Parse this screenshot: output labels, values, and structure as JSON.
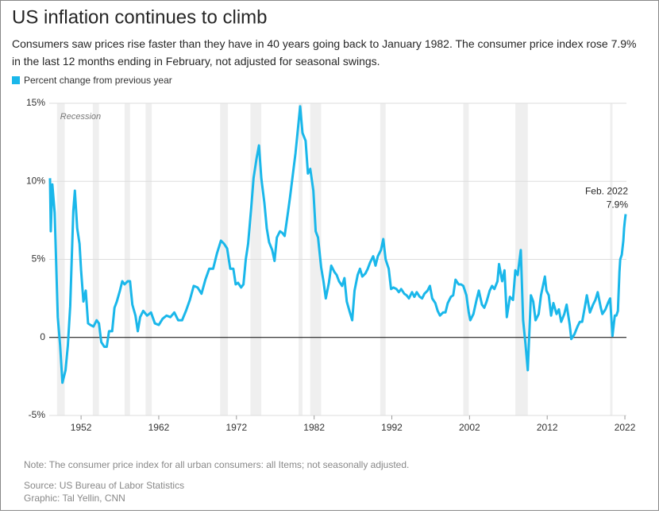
{
  "chart_data": {
    "type": "line",
    "title": "US inflation continues to climb",
    "subtitle": "Consumers saw prices rise faster than they have in 40 years going back to January 1982. The consumer price index rose 7.9% in the last 12 months ending in February, not adjusted for seasonal swings.",
    "note": "Note: The consumer price index for all urban consumers: all Items; not seasonally adjusted.",
    "source": "Source: US Bureau of Labor Statistics",
    "credit": "Graphic: Tal Yellin, CNN",
    "recession_label": "Recession",
    "recessions": [
      [
        1948.9,
        1949.9
      ],
      [
        1953.5,
        1954.3
      ],
      [
        1957.6,
        1958.3
      ],
      [
        1960.3,
        1961.1
      ],
      [
        1969.9,
        1970.9
      ],
      [
        1973.8,
        1975.2
      ],
      [
        1980.0,
        1980.5
      ],
      [
        1981.5,
        1982.9
      ],
      [
        1990.5,
        1991.2
      ],
      [
        2001.2,
        2001.9
      ],
      [
        2007.9,
        2009.5
      ],
      [
        2020.1,
        2020.4
      ]
    ],
    "annotation": {
      "x": 2022.1,
      "text": "Feb. 2022",
      "value": 7.9,
      "value_label": "7.9%"
    },
    "xlim": [
      1947.9,
      2022.2
    ],
    "xticks": [
      1952,
      1962,
      1972,
      1982,
      1992,
      2002,
      2012,
      2022
    ],
    "ylim": [
      -5,
      15
    ],
    "yticks": [
      {
        "value": -5,
        "label": "-5%"
      },
      0,
      {
        "value": 5,
        "label": "5%"
      },
      {
        "value": 10,
        "label": "10%"
      },
      {
        "value": 15,
        "label": "15%"
      }
    ],
    "grid": true,
    "x": [
      1948.0,
      1948.1,
      1948.3,
      1948.6,
      1949.0,
      1949.3,
      1949.6,
      1950.0,
      1950.3,
      1950.6,
      1951.0,
      1951.2,
      1951.5,
      1951.8,
      1952.0,
      1952.3,
      1952.6,
      1952.9,
      1953.2,
      1953.6,
      1954.0,
      1954.3,
      1954.6,
      1955.0,
      1955.3,
      1955.6,
      1956.0,
      1956.3,
      1956.6,
      1957.0,
      1957.3,
      1957.6,
      1958.0,
      1958.3,
      1958.6,
      1959.0,
      1959.3,
      1959.6,
      1960.0,
      1960.5,
      1961.0,
      1961.5,
      1962.0,
      1962.5,
      1963.0,
      1963.5,
      1964.0,
      1964.5,
      1965.0,
      1965.5,
      1966.0,
      1966.5,
      1967.0,
      1967.5,
      1968.0,
      1968.5,
      1969.0,
      1969.5,
      1970.0,
      1970.4,
      1970.8,
      1971.2,
      1971.6,
      1971.9,
      1972.2,
      1972.6,
      1972.9,
      1973.2,
      1973.5,
      1973.9,
      1974.2,
      1974.6,
      1974.9,
      1975.2,
      1975.6,
      1975.9,
      1976.2,
      1976.6,
      1976.9,
      1977.2,
      1977.6,
      1977.9,
      1978.2,
      1978.6,
      1978.9,
      1979.2,
      1979.6,
      1979.9,
      1980.2,
      1980.5,
      1980.9,
      1981.2,
      1981.5,
      1981.9,
      1982.2,
      1982.5,
      1982.9,
      1983.2,
      1983.5,
      1983.9,
      1984.2,
      1984.6,
      1984.9,
      1985.2,
      1985.6,
      1985.9,
      1986.2,
      1986.6,
      1986.9,
      1987.2,
      1987.6,
      1987.9,
      1988.2,
      1988.6,
      1988.9,
      1989.2,
      1989.6,
      1989.9,
      1990.2,
      1990.6,
      1990.9,
      1991.2,
      1991.6,
      1991.9,
      1992.2,
      1992.6,
      1992.9,
      1993.2,
      1993.6,
      1993.9,
      1994.2,
      1994.6,
      1994.9,
      1995.2,
      1995.6,
      1995.9,
      1996.2,
      1996.6,
      1996.9,
      1997.2,
      1997.6,
      1997.9,
      1998.2,
      1998.6,
      1998.9,
      1999.2,
      1999.6,
      1999.9,
      2000.2,
      2000.6,
      2000.9,
      2001.2,
      2001.6,
      2001.9,
      2002.1,
      2002.5,
      2002.9,
      2003.2,
      2003.6,
      2003.9,
      2004.2,
      2004.6,
      2004.9,
      2005.2,
      2005.6,
      2005.8,
      2006.2,
      2006.5,
      2006.8,
      2007.2,
      2007.6,
      2007.9,
      2008.2,
      2008.6,
      2008.9,
      2009.2,
      2009.5,
      2009.9,
      2010.2,
      2010.5,
      2010.9,
      2011.2,
      2011.7,
      2011.9,
      2012.2,
      2012.5,
      2012.8,
      2013.2,
      2013.5,
      2013.8,
      2014.2,
      2014.5,
      2014.9,
      2015.1,
      2015.5,
      2015.9,
      2016.2,
      2016.5,
      2016.9,
      2017.1,
      2017.5,
      2017.9,
      2018.2,
      2018.5,
      2018.9,
      2019.1,
      2019.5,
      2019.9,
      2020.1,
      2020.4,
      2020.7,
      2020.9,
      2021.1,
      2021.3,
      2021.4,
      2021.6,
      2021.8,
      2021.9,
      2022.0,
      2022.1
    ],
    "series": [
      {
        "name": "Percent change from previous year",
        "color": "#1ab7ea",
        "values": [
          10.2,
          6.8,
          9.8,
          8.0,
          1.3,
          -0.5,
          -2.9,
          -2.1,
          -0.5,
          2.0,
          8.1,
          9.4,
          7.0,
          6.0,
          4.3,
          2.3,
          3.0,
          0.9,
          0.8,
          0.7,
          1.1,
          0.9,
          -0.3,
          -0.6,
          -0.6,
          0.4,
          0.4,
          1.9,
          2.3,
          3.0,
          3.6,
          3.4,
          3.6,
          3.6,
          2.1,
          1.4,
          0.4,
          1.3,
          1.7,
          1.4,
          1.6,
          0.9,
          0.8,
          1.2,
          1.4,
          1.3,
          1.6,
          1.1,
          1.1,
          1.7,
          2.4,
          3.3,
          3.2,
          2.8,
          3.7,
          4.4,
          4.4,
          5.4,
          6.2,
          6.0,
          5.7,
          4.4,
          4.4,
          3.4,
          3.5,
          3.2,
          3.4,
          5.0,
          6.0,
          8.3,
          10.2,
          11.5,
          12.3,
          10.2,
          8.6,
          7.0,
          6.1,
          5.6,
          4.9,
          6.4,
          6.8,
          6.7,
          6.5,
          7.9,
          9.0,
          10.2,
          11.8,
          13.3,
          14.8,
          13.1,
          12.6,
          10.5,
          10.8,
          9.4,
          6.8,
          6.4,
          4.5,
          3.6,
          2.5,
          3.5,
          4.6,
          4.2,
          4.0,
          3.6,
          3.3,
          3.8,
          2.3,
          1.6,
          1.1,
          3.0,
          4.0,
          4.4,
          3.9,
          4.1,
          4.4,
          4.8,
          5.2,
          4.6,
          5.2,
          5.6,
          6.3,
          5.0,
          4.4,
          3.1,
          3.2,
          3.1,
          2.9,
          3.1,
          2.8,
          2.7,
          2.5,
          2.9,
          2.6,
          2.9,
          2.6,
          2.5,
          2.8,
          3.0,
          3.3,
          2.5,
          2.2,
          1.7,
          1.4,
          1.6,
          1.6,
          2.2,
          2.6,
          2.7,
          3.7,
          3.4,
          3.4,
          3.3,
          2.7,
          1.6,
          1.1,
          1.5,
          2.4,
          3.0,
          2.1,
          1.9,
          2.3,
          3.0,
          3.3,
          3.1,
          3.6,
          4.7,
          3.6,
          4.3,
          1.3,
          2.6,
          2.4,
          4.3,
          4.0,
          5.6,
          1.1,
          -0.4,
          -2.1,
          2.7,
          2.3,
          1.1,
          1.5,
          2.7,
          3.9,
          3.0,
          2.7,
          1.4,
          2.2,
          1.5,
          1.8,
          1.0,
          1.5,
          2.1,
          0.8,
          -0.1,
          0.2,
          0.7,
          1.0,
          1.0,
          2.1,
          2.7,
          1.6,
          2.1,
          2.4,
          2.9,
          1.9,
          1.5,
          1.8,
          2.3,
          2.5,
          0.1,
          1.4,
          1.4,
          1.7,
          4.2,
          5.0,
          5.3,
          6.2,
          7.0,
          7.5,
          7.9
        ]
      }
    ]
  }
}
